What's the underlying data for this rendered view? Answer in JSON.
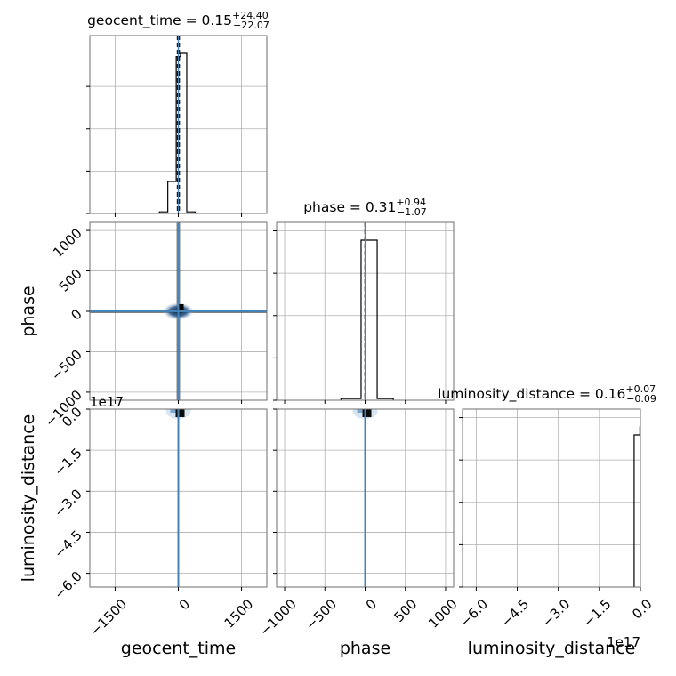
{
  "chart_data": {
    "type": "corner",
    "parameters": [
      "geocent_time",
      "phase",
      "luminosity_distance"
    ],
    "titles": [
      {
        "param": "geocent_time",
        "prefix": "geocent_time = ",
        "median": "0.15",
        "plus": "+24.40",
        "minus": "−22.07"
      },
      {
        "param": "phase",
        "prefix": "phase = ",
        "median": "0.31",
        "plus": "+0.94",
        "minus": "−1.07"
      },
      {
        "param": "luminosity_distance",
        "prefix": "luminosity_distance = ",
        "median": "0.16",
        "plus": "+0.07",
        "minus": "−0.09"
      }
    ],
    "axis_labels": {
      "x": [
        "geocent_time",
        "phase",
        "luminosity_distance"
      ],
      "y": [
        "",
        "phase",
        "luminosity_distance"
      ]
    },
    "ranges": {
      "geocent_time": [
        -2100,
        2100
      ],
      "phase": [
        -1100,
        1100
      ],
      "luminosity_distance": [
        -6.5e+17,
        0
      ]
    },
    "ticks": {
      "geocent_time": [
        {
          "v": -1500,
          "label": "−1500"
        },
        {
          "v": 0,
          "label": "0"
        },
        {
          "v": 1500,
          "label": "1500"
        }
      ],
      "phase": [
        {
          "v": -1000,
          "label": "−1000"
        },
        {
          "v": -500,
          "label": "−500"
        },
        {
          "v": 0,
          "label": "0"
        },
        {
          "v": 500,
          "label": "500"
        },
        {
          "v": 1000,
          "label": "1000"
        }
      ],
      "luminosity_distance": [
        {
          "v": -6e+17,
          "label": "−6.0"
        },
        {
          "v": -4.5e+17,
          "label": "−4.5"
        },
        {
          "v": -3e+17,
          "label": "−3.0"
        },
        {
          "v": -1.5e+17,
          "label": "−1.5"
        },
        {
          "v": 0,
          "label": "0.0"
        }
      ]
    },
    "offset_label": "1e17",
    "hist": {
      "geocent_time": {
        "edges": [
          -450,
          -250,
          -50,
          50,
          200,
          400
        ],
        "counts": [
          0.01,
          0.2,
          0.98,
          1.0,
          0.01
        ]
      },
      "phase": {
        "edges": [
          -300,
          -50,
          0,
          150,
          350
        ],
        "counts": [
          0.01,
          1.0,
          1.0,
          0.01
        ]
      },
      "luminosity_distance": {
        "edges": [
          -2.3e+16,
          -2000000000000000.0,
          0
        ],
        "counts": [
          0.95,
          1.0
        ]
      }
    },
    "quantiles": {
      "geocent_time": [
        -21.92,
        0.15,
        24.55
      ],
      "phase": [
        -0.76,
        0.31,
        1.25
      ],
      "luminosity_distance": [
        0.07,
        0.16,
        0.23
      ]
    },
    "truths": {
      "geocent_time": 0.15,
      "phase": 0.31,
      "luminosity_distance": 0.16
    },
    "grid": true,
    "colors": {
      "hist": "#000000",
      "truth": "#4682b4",
      "density_dark": "#0b1f3a",
      "density_light": "#c9dcef",
      "grid": "#b0b0b0"
    }
  }
}
